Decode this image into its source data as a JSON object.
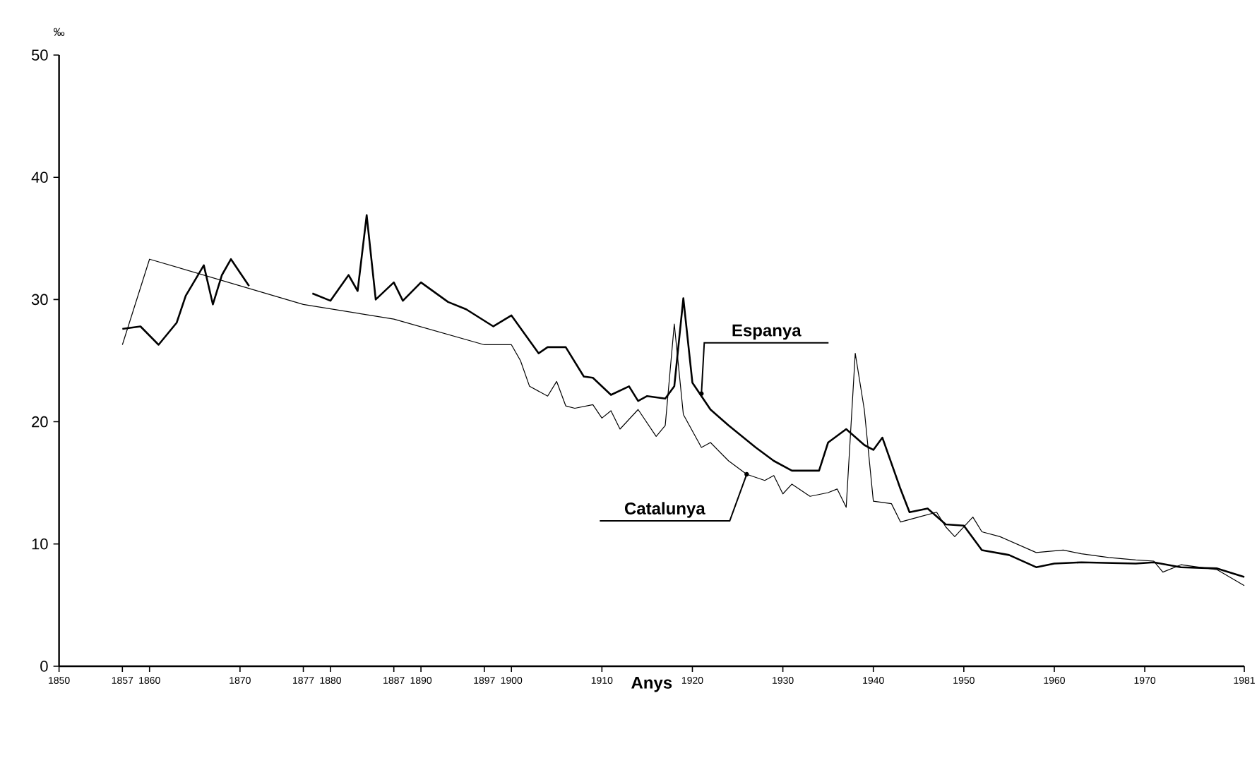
{
  "chart_data": {
    "type": "line",
    "xlabel": "**Anys**",
    "ylabel": "‰",
    "xlim": [
      1850,
      1981
    ],
    "ylim": [
      0,
      50
    ],
    "xticks": [
      1850,
      1857,
      1860,
      1870,
      1877,
      1880,
      1887,
      1890,
      1897,
      1900,
      1910,
      1920,
      1930,
      1940,
      1950,
      1960,
      1970,
      1981
    ],
    "yticks": [
      0,
      10,
      20,
      30,
      40,
      50
    ],
    "grid": false,
    "marker": "none",
    "line_style": "solid",
    "series": [
      {
        "color": "#000000",
        "x": [
          1857,
          1859,
          1861,
          1863,
          1864,
          1866,
          1867,
          1868,
          1869,
          1871,
          1875,
          1878,
          1880,
          1882,
          1883,
          1884,
          1885,
          1887,
          1888,
          1890,
          1893,
          1895,
          1898,
          1900,
          1903,
          1904,
          1906,
          1908,
          1909,
          1911,
          1913,
          1914,
          1915,
          1917,
          1918,
          1919,
          1920,
          1922,
          1924,
          1927,
          1929,
          1931,
          1934,
          1935,
          1937,
          1939,
          1940,
          1941,
          1943,
          1944,
          1946,
          1948,
          1950,
          1952,
          1955,
          1958,
          1960,
          1963,
          1969,
          1971,
          1974,
          1978,
          1981
        ],
        "values": [
          27.6,
          27.8,
          26.3,
          28.1,
          30.3,
          32.8,
          29.6,
          32.0,
          33.3,
          31.1,
          null,
          30.5,
          29.9,
          32.0,
          30.7,
          36.9,
          30.0,
          31.4,
          29.9,
          31.4,
          29.8,
          29.2,
          27.8,
          28.7,
          25.6,
          26.1,
          26.1,
          23.7,
          23.6,
          22.2,
          22.9,
          21.7,
          22.1,
          21.9,
          22.9,
          30.1,
          23.2,
          21.0,
          19.7,
          17.9,
          16.8,
          16.0,
          16.0,
          18.3,
          19.4,
          18.1,
          17.7,
          18.7,
          14.5,
          12.6,
          12.9,
          11.6,
          11.5,
          9.5,
          9.1,
          8.1,
          8.4,
          8.5,
          8.4,
          8.5,
          8.1,
          8.0,
          7.3
        ]
      },
      {
        "color": "#000000",
        "x": [
          1857,
          1860,
          1877,
          1887,
          1897,
          1900,
          1901,
          1902,
          1904,
          1905,
          1906,
          1907,
          1909,
          1910,
          1911,
          1912,
          1914,
          1916,
          1917,
          1918,
          1919,
          1921,
          1922,
          1924,
          1926,
          1928,
          1929,
          1930,
          1931,
          1933,
          1935,
          1936,
          1937,
          1938,
          1939,
          1940,
          1942,
          1943,
          1945,
          1947,
          1948,
          1949,
          1951,
          1952,
          1954,
          1958,
          1961,
          1963,
          1966,
          1969,
          1971,
          1972,
          1974,
          1978,
          1981
        ],
        "values": [
          26.3,
          33.3,
          29.6,
          28.4,
          26.3,
          26.3,
          25.0,
          22.9,
          22.1,
          23.3,
          21.3,
          21.1,
          21.4,
          20.3,
          20.9,
          19.4,
          21.0,
          18.8,
          19.7,
          28.0,
          20.6,
          17.9,
          18.3,
          16.8,
          15.7,
          15.2,
          15.6,
          14.1,
          14.9,
          13.9,
          14.2,
          14.5,
          13.0,
          25.6,
          21.0,
          13.5,
          13.3,
          11.8,
          12.2,
          12.6,
          11.4,
          10.6,
          12.2,
          11.0,
          10.6,
          9.3,
          9.5,
          9.2,
          8.9,
          8.7,
          8.6,
          7.7,
          8.3,
          7.9,
          6.6
        ]
      }
    ],
    "annotations": [
      {
        "text": "Espanya",
        "x": 1921,
        "y": 22.3
      },
      {
        "text": "Catalunya",
        "x": 1926,
        "y": 15.7
      }
    ]
  }
}
